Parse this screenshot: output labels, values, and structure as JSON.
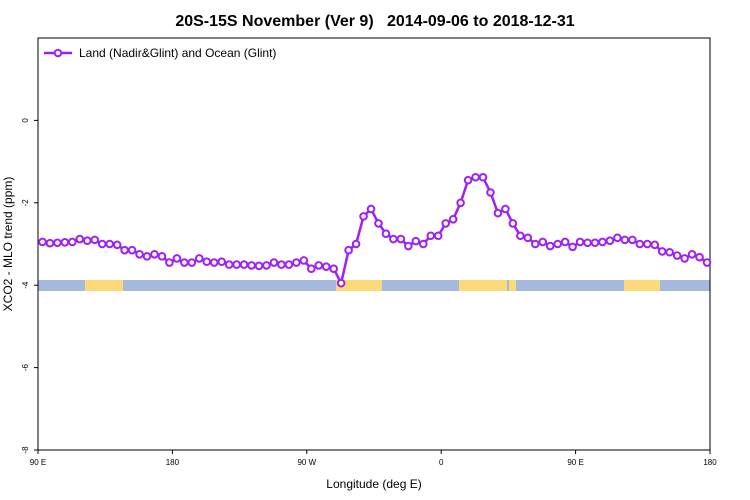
{
  "chart_data": {
    "type": "line",
    "title": "20S-15S November (Ver 9)   2014-09-06 to 2018-12-31",
    "xlabel": "Longitude (deg E)",
    "ylabel": "XCO2 - MLO trend (ppm)",
    "xlim": [
      90,
      540
    ],
    "ylim": [
      -8,
      2
    ],
    "xticks": [
      {
        "value": 90,
        "label": "90 E"
      },
      {
        "value": 180,
        "label": "180"
      },
      {
        "value": 270,
        "label": "90 W"
      },
      {
        "value": 360,
        "label": "0"
      },
      {
        "value": 450,
        "label": "90 E"
      },
      {
        "value": 540,
        "label": "180"
      }
    ],
    "yticks": [
      0,
      -2,
      -4,
      -6,
      -8
    ],
    "legend": "top-left",
    "x": [
      93,
      98,
      103,
      108,
      113,
      118,
      123,
      128,
      133,
      138,
      143,
      148,
      153,
      158,
      163,
      168,
      173,
      178,
      183,
      188,
      193,
      198,
      203,
      208,
      213,
      218,
      223,
      228,
      233,
      238,
      243,
      248,
      253,
      258,
      263,
      268,
      273,
      278,
      283,
      288,
      293,
      298,
      303,
      308,
      313,
      318,
      323,
      328,
      333,
      338,
      343,
      348,
      353,
      358,
      363,
      368,
      373,
      378,
      383,
      388,
      393,
      398,
      403,
      408,
      413,
      418,
      423,
      428,
      433,
      438,
      443,
      448,
      453,
      458,
      463,
      468,
      473,
      478,
      483,
      488,
      493,
      498,
      503,
      508,
      513,
      518,
      523,
      528,
      533,
      538
    ],
    "series": [
      {
        "name": "Land (Nadir&Glint) and Ocean (Glint)",
        "color": "#a020f0",
        "values": [
          -2.95,
          -2.98,
          -2.97,
          -2.96,
          -2.95,
          -2.88,
          -2.92,
          -2.9,
          -3.0,
          -3.0,
          -3.02,
          -3.15,
          -3.15,
          -3.25,
          -3.3,
          -3.25,
          -3.3,
          -3.45,
          -3.35,
          -3.45,
          -3.45,
          -3.35,
          -3.43,
          -3.45,
          -3.43,
          -3.5,
          -3.5,
          -3.5,
          -3.52,
          -3.53,
          -3.52,
          -3.45,
          -3.5,
          -3.5,
          -3.45,
          -3.4,
          -3.6,
          -3.52,
          -3.55,
          -3.6,
          -3.95,
          -3.15,
          -3.0,
          -2.33,
          -2.15,
          -2.5,
          -2.75,
          -2.88,
          -2.88,
          -3.05,
          -2.93,
          -3.0,
          -2.8,
          -2.8,
          -2.5,
          -2.4,
          -2.0,
          -1.45,
          -1.38,
          -1.38,
          -1.75,
          -2.25,
          -2.15,
          -2.5,
          -2.8,
          -2.85,
          -3.0,
          -2.95,
          -3.05,
          -3.0,
          -2.95,
          -3.07,
          -2.95,
          -2.97,
          -2.97,
          -2.95,
          -2.92,
          -2.85,
          -2.9,
          -2.9,
          -3.0,
          -3.0,
          -3.02,
          -3.18,
          -3.2,
          -3.28,
          -3.35,
          -3.25,
          -3.32,
          -3.45
        ]
      }
    ]
  }
}
